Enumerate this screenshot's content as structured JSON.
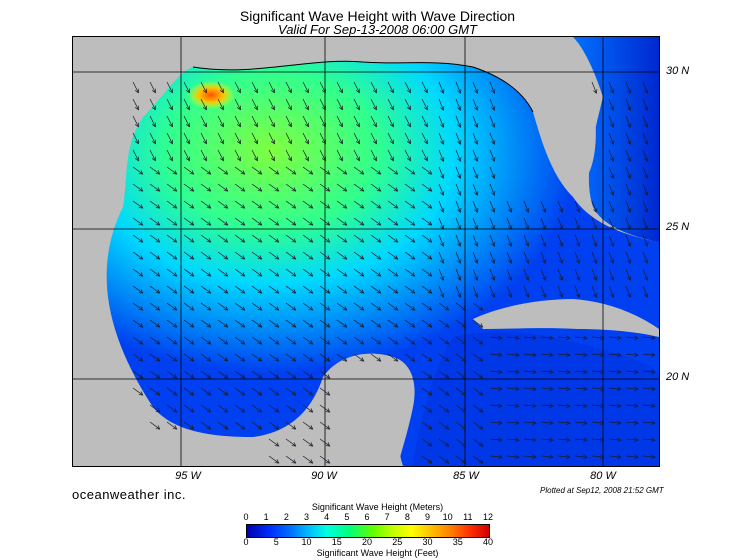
{
  "title": "Significant Wave Height with Wave Direction",
  "subtitle": "Valid For Sep-13-2008 06:00 GMT",
  "longitude_labels": [
    "95 W",
    "90 W",
    "85 W",
    "80 W"
  ],
  "latitude_labels": [
    "30 N",
    "25 N",
    "20 N"
  ],
  "brand": "oceanweather inc.",
  "plotted_note": "Plotted at Sep12, 2008 21:52 GMT",
  "colorbar": {
    "meters_title": "Significant Wave Height (Meters)",
    "feet_title": "Significant Wave Height (Feet)",
    "meters_ticks": [
      "0",
      "1",
      "2",
      "3",
      "4",
      "5",
      "6",
      "7",
      "8",
      "9",
      "10",
      "11",
      "12"
    ],
    "feet_ticks": [
      "0",
      "5",
      "10",
      "15",
      "20",
      "25",
      "30",
      "35",
      "40"
    ]
  },
  "colors": {
    "land": "#bdbdbd",
    "sea_low": "#0038e8",
    "sea_mid": "#00c8ff",
    "sea_high": "#40ff40",
    "peak": "#ff6000",
    "arrow": "#1a1a2a",
    "grid": "#000000"
  }
}
